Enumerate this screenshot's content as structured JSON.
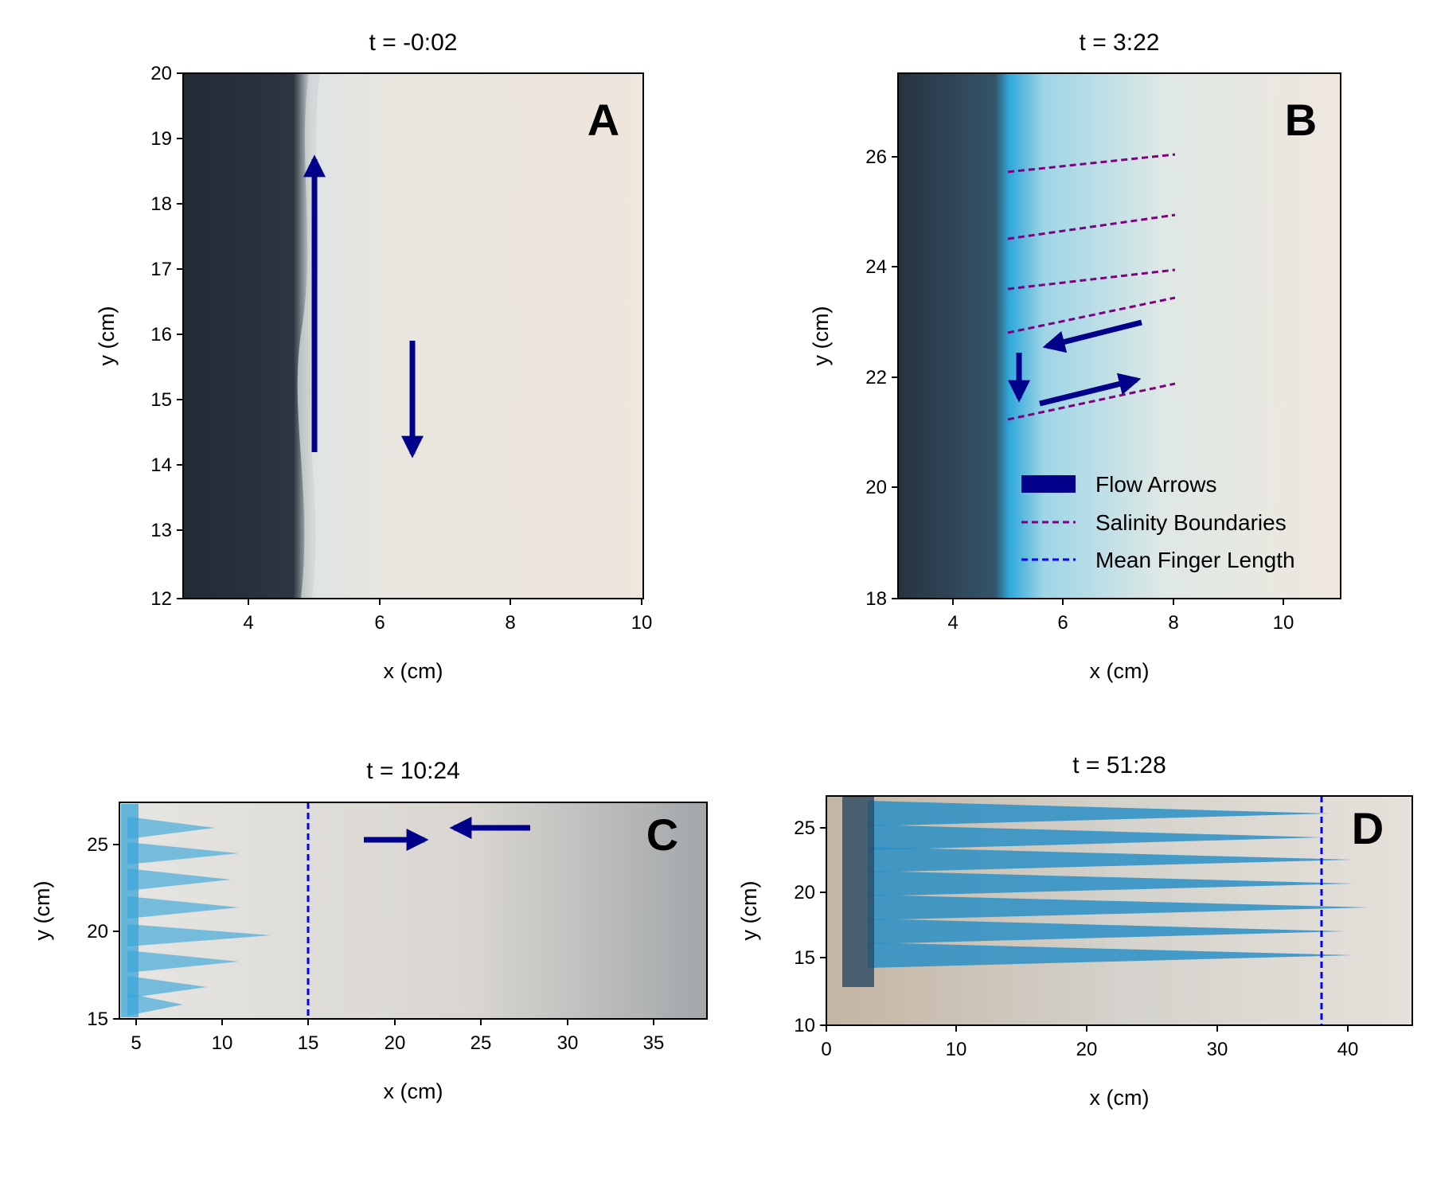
{
  "panels": [
    {
      "id": "A",
      "title": "t = -0:02",
      "letter": "A",
      "xlabel": "x (cm)",
      "ylabel": "y (cm)",
      "xticks": [
        "4",
        "6",
        "8",
        "10"
      ],
      "yticks": [
        "20",
        "19",
        "18",
        "17",
        "16",
        "15",
        "14",
        "13",
        "12"
      ]
    },
    {
      "id": "B",
      "title": "t = 3:22",
      "letter": "B",
      "xlabel": "x (cm)",
      "ylabel": "y (cm)",
      "xticks": [
        "4",
        "6",
        "8",
        "10"
      ],
      "yticks": [
        "26",
        "24",
        "22",
        "20",
        "18"
      ]
    },
    {
      "id": "C",
      "title": "t = 10:24",
      "letter": "C",
      "xlabel": "x (cm)",
      "ylabel": "y (cm)",
      "xticks": [
        "5",
        "10",
        "15",
        "20",
        "25",
        "30",
        "35"
      ],
      "yticks": [
        "25",
        "20",
        "15"
      ]
    },
    {
      "id": "D",
      "title": "t = 51:28",
      "letter": "D",
      "xlabel": "x (cm)",
      "ylabel": "y (cm)",
      "xticks": [
        "0",
        "10",
        "20",
        "30",
        "40"
      ],
      "yticks": [
        "25",
        "20",
        "15",
        "10"
      ]
    }
  ],
  "legend": {
    "flow": "Flow Arrows",
    "salinity": "Salinity Boundaries",
    "mean": "Mean Finger Length"
  },
  "colors": {
    "arrow": "#00008b",
    "salinity": "#800080",
    "mean": "#0000ff",
    "dye": "#3aa6d8"
  }
}
